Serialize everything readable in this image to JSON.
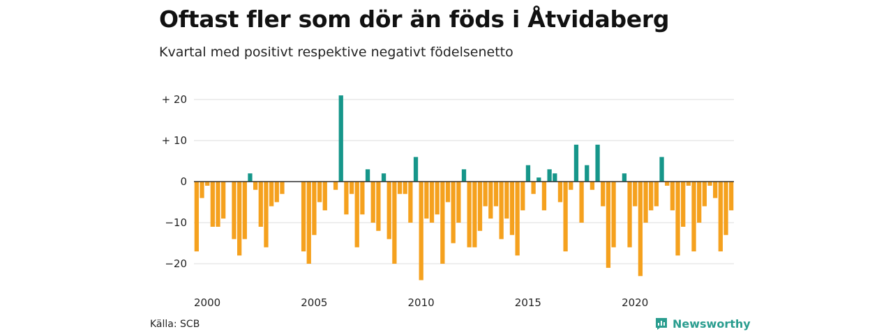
{
  "title": "Oftast fler som dör än föds i Åtvidaberg",
  "subtitle": "Kvartal med positivt respektive negativt födelsenetto",
  "source": "Källa: SCB",
  "brand": "Newsworthy",
  "colors": {
    "positive": "#16968a",
    "negative": "#f5a11e",
    "grid": "#dddddd",
    "zero": "#222222",
    "brand": "#2a9d8f"
  },
  "chart_data": {
    "type": "bar",
    "xlabel": "",
    "ylabel": "",
    "ylim": [
      -25,
      22
    ],
    "yticks": [
      20,
      10,
      0,
      -10,
      -20
    ],
    "ytick_labels": [
      "+ 20",
      "+ 10",
      "0",
      "−10",
      "−20"
    ],
    "xtick_labels": [
      "2000",
      "2005",
      "2010",
      "2015",
      "2020"
    ],
    "start_year": 2000,
    "values": [
      -17,
      -4,
      -1,
      -11,
      -11,
      -9,
      0,
      -14,
      -18,
      -14,
      2,
      -2,
      -11,
      -16,
      -6,
      -5,
      -3,
      0,
      0,
      0,
      -17,
      -20,
      -13,
      -5,
      -7,
      0,
      -2,
      21,
      -8,
      -3,
      -16,
      -8,
      3,
      -10,
      -12,
      2,
      -14,
      -20,
      -3,
      -3,
      -10,
      6,
      -24,
      -9,
      -10,
      -8,
      -20,
      -5,
      -15,
      -10,
      3,
      -16,
      -16,
      -12,
      -6,
      -9,
      -6,
      -14,
      -9,
      -13,
      -18,
      -7,
      4,
      -3,
      1,
      -7,
      3,
      2,
      -5,
      -17,
      -2,
      9,
      -10,
      4,
      -2,
      9,
      -6,
      -21,
      -16,
      0,
      2,
      -16,
      -6,
      -23,
      -10,
      -7,
      -6,
      6,
      -1,
      -7,
      -18,
      -11,
      -1,
      -17,
      -10,
      -6,
      -1,
      -4,
      -17,
      -13,
      -7
    ]
  }
}
